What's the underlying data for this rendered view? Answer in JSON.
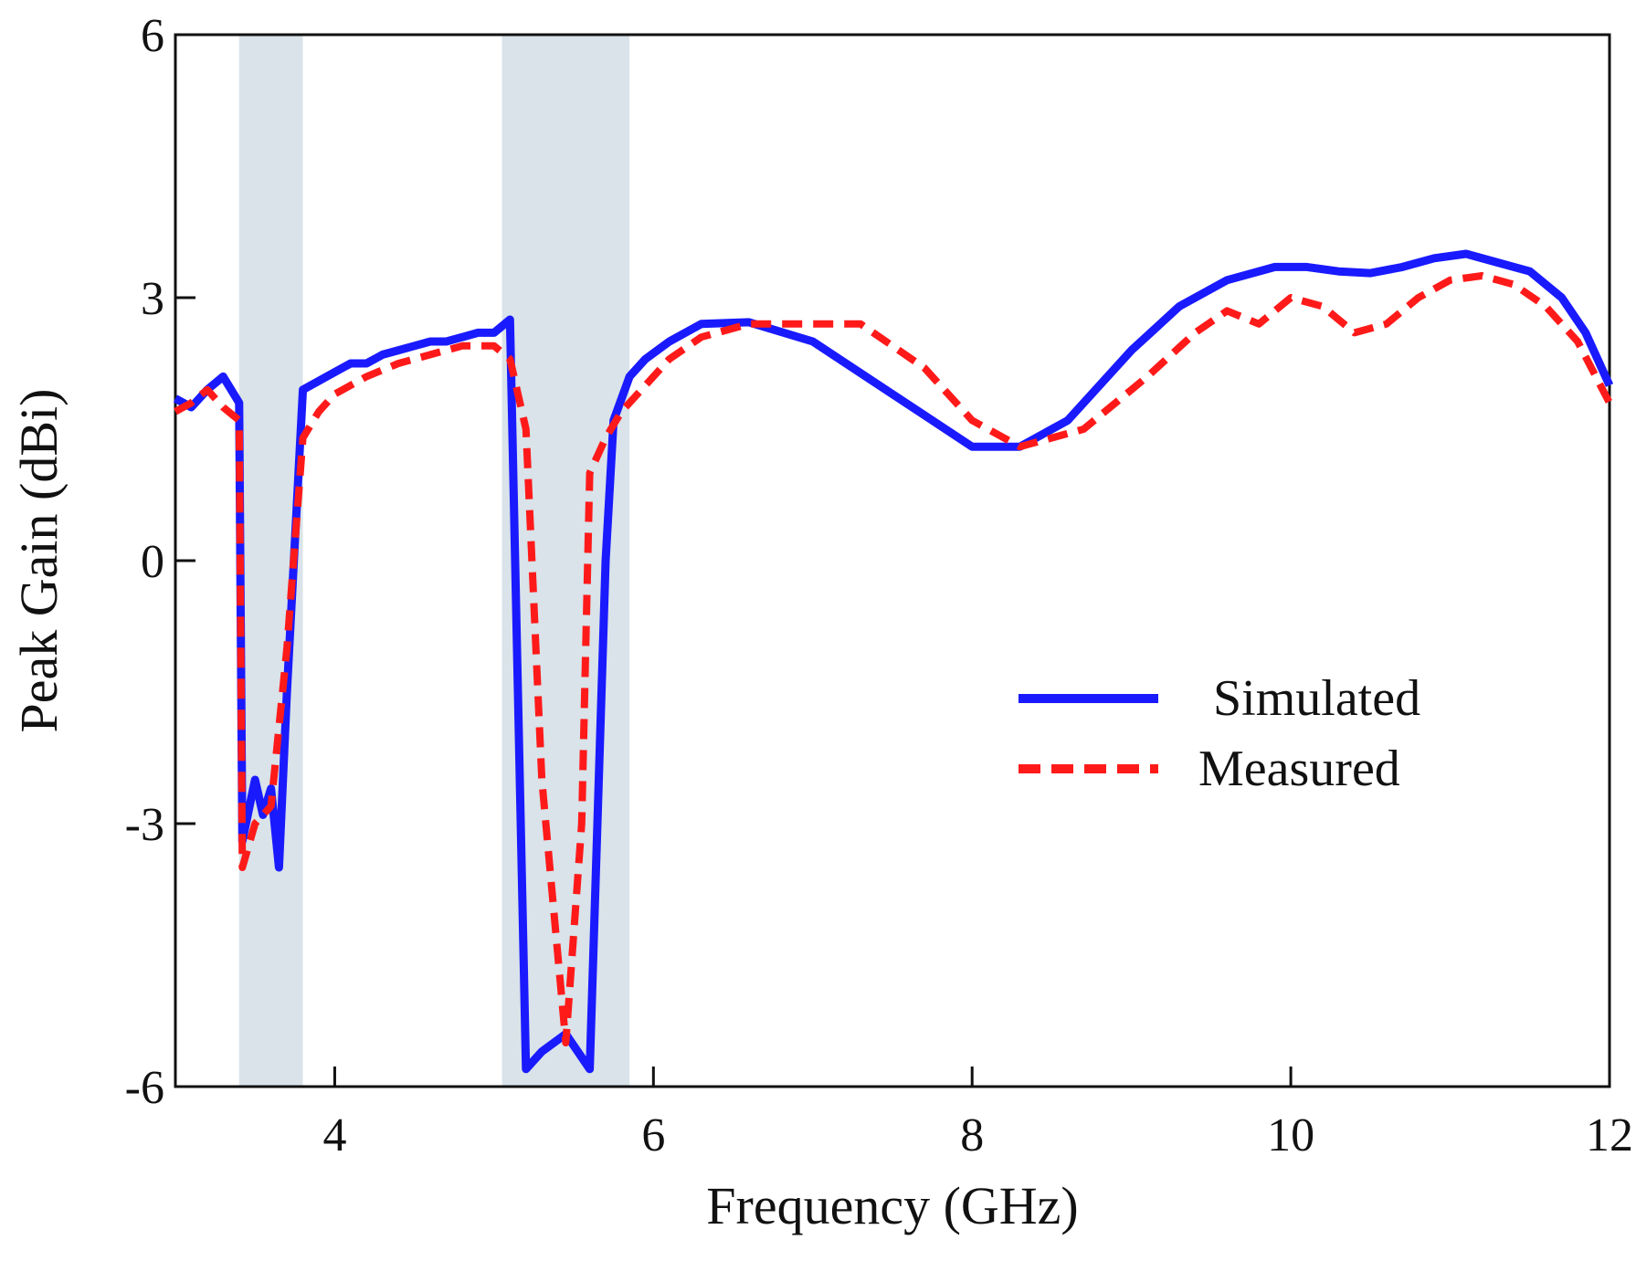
{
  "chart_data": {
    "type": "line",
    "title": "",
    "xlabel": "Frequency  (GHz)",
    "ylabel": "Peak Gain (dBi)",
    "xlim": [
      3,
      12
    ],
    "ylim": [
      -6,
      6
    ],
    "xticks": [
      4,
      6,
      8,
      10,
      12
    ],
    "yticks": [
      6,
      3,
      0,
      -3,
      -6
    ],
    "xtick_labels": [
      "4",
      "6",
      "8",
      "10",
      "12"
    ],
    "ytick_labels": [
      "6",
      "3",
      "0",
      "-3",
      "-6"
    ],
    "grid": false,
    "legend_position": "center-right",
    "shaded_bands": [
      {
        "x0": 3.4,
        "x1": 3.8,
        "color": "#d9e3e9"
      },
      {
        "x0": 5.05,
        "x1": 5.85,
        "color": "#d9e3e9"
      }
    ],
    "series": [
      {
        "name": "Simulated",
        "color": "#1a1aff",
        "style": "solid",
        "x": [
          3.0,
          3.1,
          3.2,
          3.3,
          3.4,
          3.42,
          3.5,
          3.55,
          3.6,
          3.65,
          3.7,
          3.8,
          3.9,
          4.0,
          4.1,
          4.2,
          4.3,
          4.4,
          4.5,
          4.6,
          4.7,
          4.8,
          4.9,
          5.0,
          5.1,
          5.2,
          5.3,
          5.45,
          5.6,
          5.7,
          5.75,
          5.85,
          5.95,
          6.1,
          6.3,
          6.6,
          7.0,
          7.5,
          8.0,
          8.3,
          8.6,
          9.0,
          9.3,
          9.6,
          9.9,
          10.1,
          10.3,
          10.5,
          10.7,
          10.9,
          11.1,
          11.3,
          11.5,
          11.7,
          11.85,
          12.0
        ],
        "values": [
          1.85,
          1.75,
          1.95,
          2.1,
          1.8,
          -3.2,
          -2.5,
          -2.9,
          -2.6,
          -3.5,
          -1.5,
          1.95,
          2.05,
          2.15,
          2.25,
          2.25,
          2.35,
          2.4,
          2.45,
          2.5,
          2.5,
          2.55,
          2.6,
          2.6,
          2.75,
          -5.8,
          -5.6,
          -5.4,
          -5.8,
          0.0,
          1.6,
          2.1,
          2.3,
          2.5,
          2.7,
          2.72,
          2.5,
          1.9,
          1.3,
          1.3,
          1.6,
          2.4,
          2.9,
          3.2,
          3.35,
          3.35,
          3.3,
          3.28,
          3.35,
          3.45,
          3.5,
          3.4,
          3.3,
          3.0,
          2.6,
          2.0
        ]
      },
      {
        "name": "Measured",
        "color": "#ff1a1a",
        "style": "dashed",
        "x": [
          3.0,
          3.1,
          3.2,
          3.3,
          3.4,
          3.42,
          3.5,
          3.6,
          3.7,
          3.8,
          3.9,
          4.0,
          4.2,
          4.4,
          4.6,
          4.8,
          5.0,
          5.1,
          5.2,
          5.3,
          5.45,
          5.55,
          5.6,
          5.7,
          5.8,
          5.9,
          6.1,
          6.3,
          6.6,
          7.0,
          7.3,
          7.7,
          8.0,
          8.3,
          8.7,
          9.1,
          9.4,
          9.6,
          9.8,
          10.0,
          10.2,
          10.4,
          10.6,
          10.8,
          11.0,
          11.2,
          11.4,
          11.6,
          11.8,
          12.0
        ],
        "values": [
          1.7,
          1.8,
          1.95,
          1.75,
          1.6,
          -3.5,
          -3.0,
          -2.8,
          -1.0,
          1.4,
          1.7,
          1.9,
          2.1,
          2.25,
          2.35,
          2.45,
          2.45,
          2.3,
          1.5,
          -2.5,
          -5.5,
          -3.0,
          1.0,
          1.4,
          1.7,
          1.9,
          2.3,
          2.55,
          2.7,
          2.7,
          2.7,
          2.2,
          1.6,
          1.3,
          1.5,
          2.1,
          2.6,
          2.85,
          2.7,
          3.0,
          2.9,
          2.6,
          2.7,
          3.0,
          3.2,
          3.25,
          3.15,
          2.9,
          2.5,
          1.8
        ]
      }
    ]
  }
}
